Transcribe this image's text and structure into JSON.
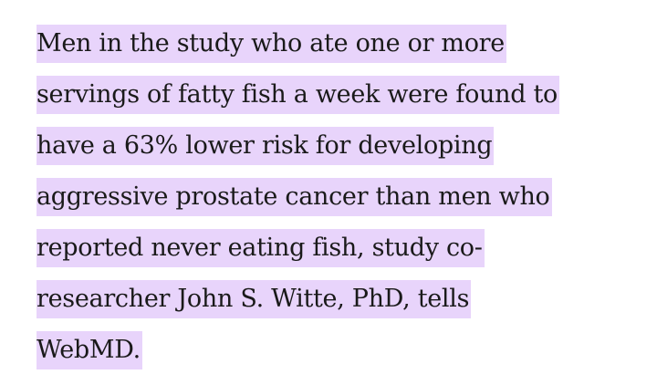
{
  "article": {
    "highlighted_paragraph": {
      "lines": [
        "Men in the study who ate one or more",
        "servings of fatty fish a week were found to",
        "have a 63% lower risk for developing",
        "aggressive prostate cancer than men who",
        "reported never eating fish, study co-",
        "researcher John S. Witte, PhD, tells",
        "WebMD."
      ],
      "highlight_color": "#e8d4fb",
      "text_color": "#1a1a1a"
    }
  }
}
